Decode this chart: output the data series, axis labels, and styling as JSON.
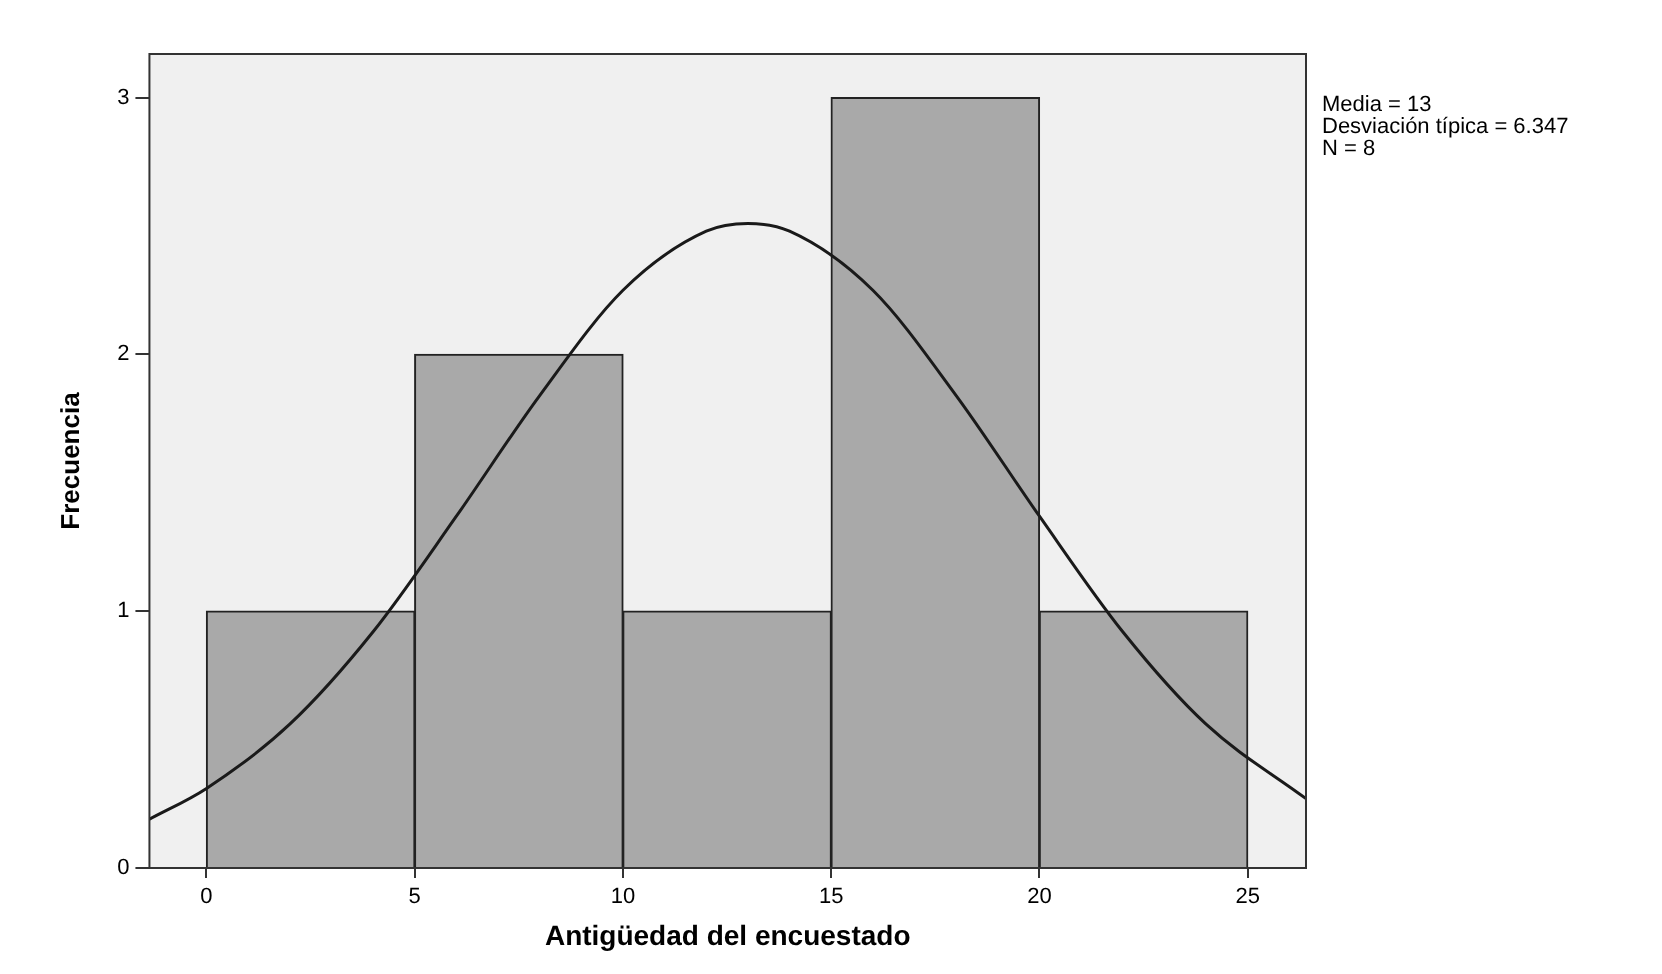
{
  "chart_data": {
    "type": "histogram",
    "xlabel": "Antigüedad del encuestado",
    "ylabel": "Frecuencia",
    "series": [
      {
        "color": "#a9a9a9",
        "bins": [
          0,
          5,
          10,
          15,
          20,
          25
        ],
        "values": [
          1,
          2,
          1,
          3,
          1
        ]
      },
      {
        "type": "line",
        "color": "#1a1a1a",
        "x": [
          -1.37,
          0,
          2,
          4,
          6,
          8,
          10,
          12,
          13,
          14,
          16,
          18,
          20,
          22,
          24,
          26.4
        ],
        "values": [
          0.19,
          0.31,
          0.56,
          0.92,
          1.37,
          1.84,
          2.25,
          2.48,
          2.51,
          2.48,
          2.25,
          1.84,
          1.37,
          0.92,
          0.56,
          0.27
        ]
      }
    ],
    "xlim": [
      -1.37,
      26.4
    ],
    "ylim": [
      0,
      3.17
    ],
    "xticks": [
      0,
      5,
      10,
      15,
      20,
      25
    ],
    "yticks": [
      0,
      1,
      2,
      3
    ],
    "grid": false,
    "legend": false,
    "marker": "none",
    "annotations": [
      "Media = 13",
      "Desviación típica = 6.347",
      "N = 8"
    ]
  }
}
